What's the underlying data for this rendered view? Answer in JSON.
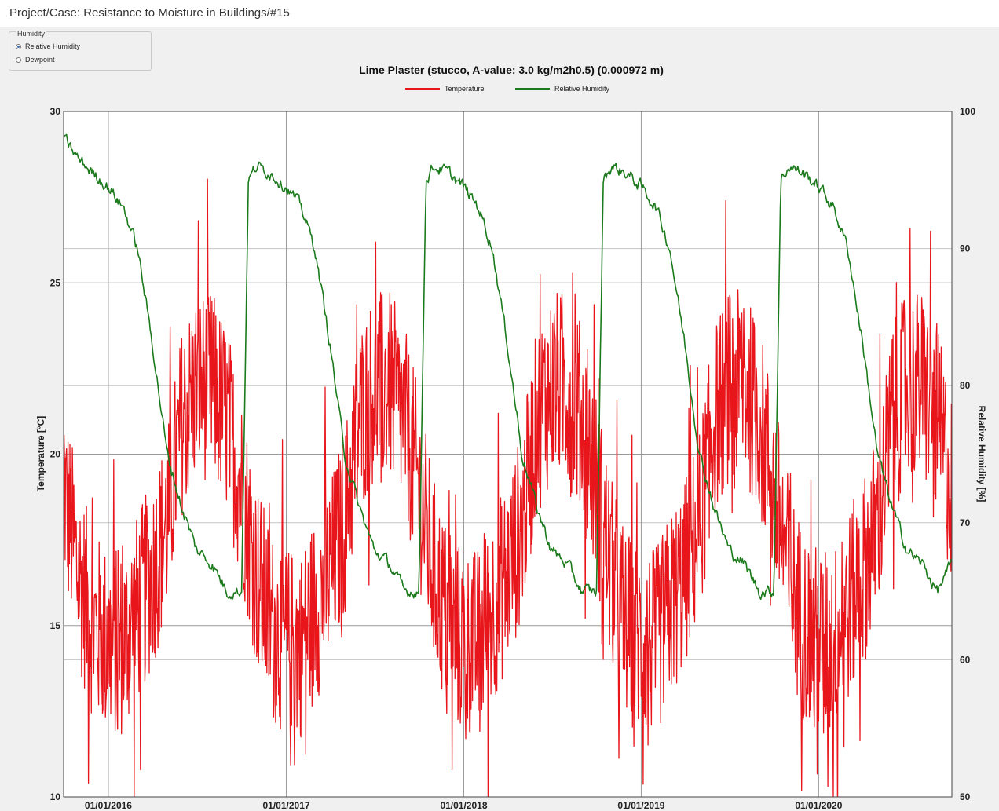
{
  "window": {
    "title": "Project/Case:  Resistance to Moisture in Buildings/#15"
  },
  "humidity_group": {
    "label": "Humidity",
    "options": [
      {
        "label": "Relative Humidity",
        "selected": true
      },
      {
        "label": "Dewpoint",
        "selected": false
      }
    ]
  },
  "colors": {
    "temperature": "#e8151b",
    "relative_humidity": "#1b7a1b",
    "grid": "#9a9a9a",
    "plot_background": "#ffffff"
  },
  "chart_data": {
    "type": "line",
    "title": "Lime Plaster (stucco, A-value: 3.0 kg/m2h0.5) (0.000972 m)",
    "legend": [
      "Temperature",
      "Relative Humidity"
    ],
    "legend_position": "top-center",
    "grid": true,
    "y_left": {
      "label": "Temperature [°C]",
      "range": [
        10,
        30
      ],
      "ticks": [
        10,
        15,
        20,
        25,
        30
      ]
    },
    "y_right": {
      "label": "Relative Humidity [%]",
      "range": [
        50,
        100
      ],
      "ticks": [
        50,
        60,
        70,
        80,
        90,
        100
      ]
    },
    "x": {
      "range": [
        "2015-10-01",
        "2020-10-01"
      ],
      "tick_labels": [
        "01/01/2016",
        "01/01/2017",
        "01/01/2018",
        "01/01/2019",
        "01/01/2020"
      ]
    },
    "series": [
      {
        "name": "Temperature",
        "axis": "left",
        "x": [
          "2015-10-01",
          "2015-11-01",
          "2015-12-01",
          "2016-01-01",
          "2016-02-01",
          "2016-03-01",
          "2016-04-01",
          "2016-05-01",
          "2016-06-01",
          "2016-07-01",
          "2016-08-01",
          "2016-09-01",
          "2016-10-01",
          "2016-11-01",
          "2016-12-01",
          "2017-01-01",
          "2017-02-01",
          "2017-03-01",
          "2017-04-01",
          "2017-05-01",
          "2017-06-01",
          "2017-07-01",
          "2017-08-01",
          "2017-09-01",
          "2017-10-01",
          "2017-11-01",
          "2017-12-01",
          "2018-01-01",
          "2018-02-01",
          "2018-03-01",
          "2018-04-01",
          "2018-05-01",
          "2018-06-01",
          "2018-07-01",
          "2018-08-01",
          "2018-09-01",
          "2018-10-01",
          "2018-11-01",
          "2018-12-01",
          "2019-01-01",
          "2019-02-01",
          "2019-03-01",
          "2019-04-01",
          "2019-05-01",
          "2019-06-01",
          "2019-07-01",
          "2019-08-01",
          "2019-09-01",
          "2019-10-01",
          "2019-11-01",
          "2019-12-01",
          "2020-01-01",
          "2020-02-01",
          "2020-03-01",
          "2020-04-01",
          "2020-05-01",
          "2020-06-01",
          "2020-07-01",
          "2020-08-01",
          "2020-09-01",
          "2020-10-01"
        ],
        "values": [
          19,
          16.5,
          15,
          14.5,
          14.5,
          15.5,
          16.5,
          18,
          21,
          22,
          22,
          21,
          19,
          16.5,
          15,
          14.5,
          14.5,
          15.5,
          16.5,
          18,
          21,
          22,
          22,
          21,
          19,
          16.5,
          15,
          14.5,
          14.5,
          15.5,
          16.5,
          18,
          21,
          22,
          22,
          21,
          19,
          16.5,
          15,
          14.5,
          14.5,
          15.5,
          16.5,
          18,
          21,
          22,
          22,
          21,
          19,
          16.5,
          15,
          14.5,
          14.5,
          15.5,
          16.5,
          18,
          21,
          22,
          22,
          21,
          19
        ]
      },
      {
        "name": "Relative Humidity",
        "axis": "right",
        "x": [
          "2015-10-01",
          "2015-11-01",
          "2015-12-01",
          "2016-01-01",
          "2016-02-01",
          "2016-03-01",
          "2016-04-01",
          "2016-05-01",
          "2016-06-01",
          "2016-07-01",
          "2016-08-01",
          "2016-09-01",
          "2016-10-01",
          "2016-10-15",
          "2016-11-01",
          "2016-12-01",
          "2017-01-01",
          "2017-02-01",
          "2017-03-01",
          "2017-04-01",
          "2017-05-01",
          "2017-06-01",
          "2017-07-01",
          "2017-08-01",
          "2017-09-01",
          "2017-10-01",
          "2017-10-15",
          "2017-11-01",
          "2017-12-01",
          "2018-01-01",
          "2018-02-01",
          "2018-03-01",
          "2018-04-01",
          "2018-05-01",
          "2018-06-01",
          "2018-07-01",
          "2018-08-01",
          "2018-09-01",
          "2018-10-01",
          "2018-10-15",
          "2018-11-01",
          "2018-12-01",
          "2019-01-01",
          "2019-02-01",
          "2019-03-01",
          "2019-04-01",
          "2019-05-01",
          "2019-06-01",
          "2019-07-01",
          "2019-08-01",
          "2019-09-01",
          "2019-10-01",
          "2019-10-15",
          "2019-11-01",
          "2019-12-01",
          "2020-01-01",
          "2020-02-01",
          "2020-03-01",
          "2020-04-01",
          "2020-05-01",
          "2020-06-01",
          "2020-07-01",
          "2020-08-01",
          "2020-09-01",
          "2020-10-01"
        ],
        "values": [
          98,
          96.5,
          95.5,
          94.5,
          93,
          90,
          83,
          75,
          71,
          68,
          67,
          65,
          65,
          95,
          96,
          95.5,
          94.5,
          93,
          90,
          83,
          75,
          71,
          68,
          67,
          65,
          65,
          95,
          96,
          95.5,
          94.5,
          93,
          90,
          83,
          75,
          71,
          68,
          67,
          65,
          65,
          95,
          96,
          95.5,
          94.5,
          93,
          90,
          83,
          75,
          71,
          68,
          67,
          65,
          65,
          95,
          96,
          95.5,
          94.5,
          93,
          90,
          83,
          75,
          71,
          68,
          67,
          65,
          67
        ]
      }
    ]
  }
}
